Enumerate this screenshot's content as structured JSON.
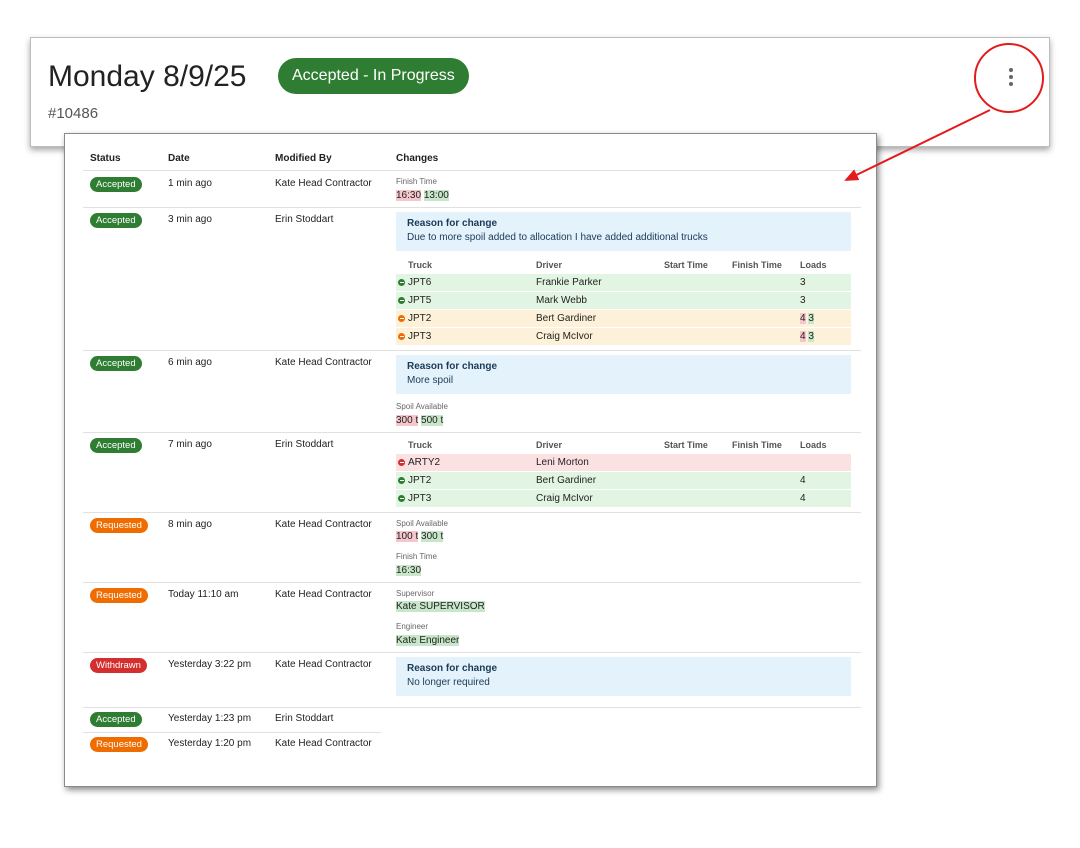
{
  "header": {
    "title": "Monday 8/9/25",
    "status": "Accepted - In Progress",
    "order_number": "#10486",
    "menu_icon": "more-vert-icon",
    "accent": "#2e7d32"
  },
  "annotation": {
    "color": "#e31b1b"
  },
  "history": {
    "columns": {
      "status": "Status",
      "date": "Date",
      "modified_by": "Modified By",
      "changes": "Changes"
    },
    "truck_columns": {
      "truck": "Truck",
      "driver": "Driver",
      "start": "Start Time",
      "finish": "Finish Time",
      "loads": "Loads"
    },
    "reason_title": "Reason for change",
    "entries": [
      {
        "status": "Accepted",
        "date": "1 min ago",
        "by": "Kate Head Contractor",
        "label": "Finish Time",
        "old": "16:30",
        "new": "13:00"
      },
      {
        "status": "Accepted",
        "date": "3 min ago",
        "by": "Erin Stoddart",
        "reason": "Due to more spoil added to allocation I have added additional trucks",
        "trucks": [
          {
            "change": "added",
            "truck": "JPT6",
            "driver": "Frankie Parker",
            "loads_old": "",
            "loads": "3"
          },
          {
            "change": "added",
            "truck": "JPT5",
            "driver": "Mark Webb",
            "loads_old": "",
            "loads": "3"
          },
          {
            "change": "changed",
            "truck": "JPT2",
            "driver": "Bert Gardiner",
            "loads_old": "4",
            "loads": "3"
          },
          {
            "change": "changed",
            "truck": "JPT3",
            "driver": "Craig McIvor",
            "loads_old": "4",
            "loads": "3"
          }
        ]
      },
      {
        "status": "Accepted",
        "date": "6 min ago",
        "by": "Kate Head Contractor",
        "reason": "More spoil",
        "label": "Spoil Available",
        "old": "300 t",
        "new": "500 t"
      },
      {
        "status": "Accepted",
        "date": "7 min ago",
        "by": "Erin Stoddart",
        "trucks": [
          {
            "change": "removed",
            "truck": "ARTY2",
            "driver": "Leni Morton",
            "loads_old": "",
            "loads": ""
          },
          {
            "change": "added",
            "truck": "JPT2",
            "driver": "Bert Gardiner",
            "loads_old": "",
            "loads": "4"
          },
          {
            "change": "added",
            "truck": "JPT3",
            "driver": "Craig McIvor",
            "loads_old": "",
            "loads": "4"
          }
        ]
      },
      {
        "status": "Requested",
        "date": "8 min ago",
        "by": "Kate Head Contractor",
        "label": "Spoil Available",
        "old": "100 t",
        "new": "300 t",
        "label2": "Finish Time",
        "new2": "16:30"
      },
      {
        "status": "Requested",
        "date": "Today 11:10 am",
        "by": "Kate Head Contractor",
        "label": "Supervisor",
        "new": "Kate SUPERVISOR",
        "label2": "Engineer",
        "new2": "Kate Engineer"
      },
      {
        "status": "Withdrawn",
        "date": "Yesterday 3:22 pm",
        "by": "Kate Head Contractor",
        "reason": "No longer required"
      },
      {
        "status": "Accepted",
        "date": "Yesterday 1:23 pm",
        "by": "Erin Stoddart"
      },
      {
        "status": "Requested",
        "date": "Yesterday 1:20 pm",
        "by": "Kate Head Contractor"
      }
    ]
  }
}
